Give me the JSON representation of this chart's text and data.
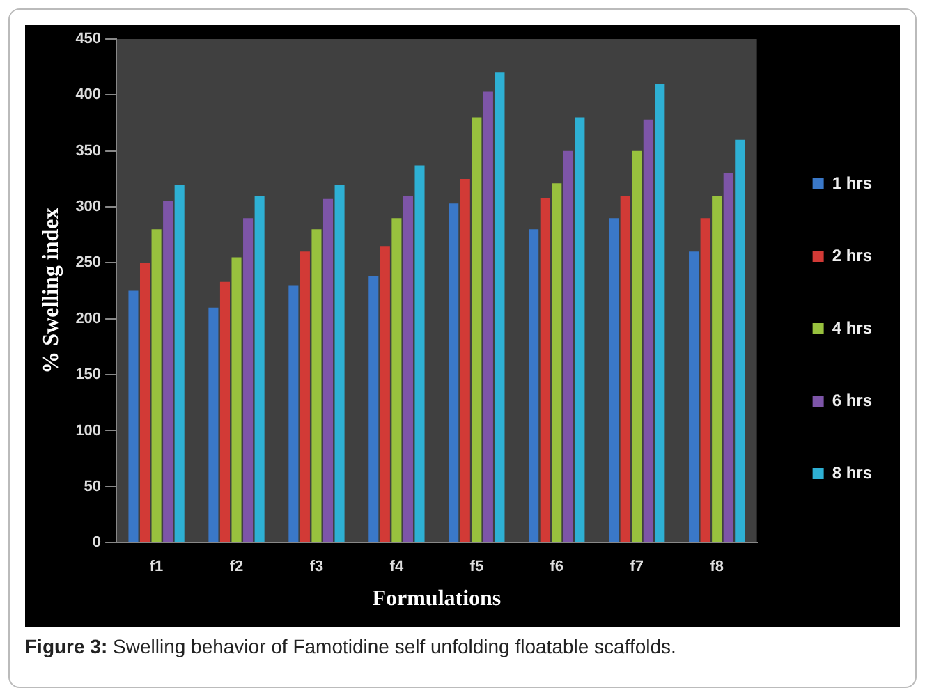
{
  "chart_data": {
    "type": "bar",
    "xlabel": "Formulations",
    "ylabel": "% Swelling index",
    "categories": [
      "f1",
      "f2",
      "f3",
      "f4",
      "f5",
      "f6",
      "f7",
      "f8"
    ],
    "series": [
      {
        "name": "1 hrs",
        "color": "#3a78c8",
        "values": [
          225,
          210,
          230,
          238,
          303,
          280,
          290,
          260
        ]
      },
      {
        "name": "2 hrs",
        "color": "#d23a36",
        "values": [
          250,
          233,
          260,
          265,
          325,
          308,
          310,
          290
        ]
      },
      {
        "name": "4 hrs",
        "color": "#98c13e",
        "values": [
          280,
          255,
          280,
          290,
          380,
          321,
          350,
          310
        ]
      },
      {
        "name": "6 hrs",
        "color": "#7d55a8",
        "values": [
          305,
          290,
          307,
          310,
          403,
          350,
          378,
          330
        ]
      },
      {
        "name": "8 hrs",
        "color": "#2eb0d4",
        "values": [
          320,
          310,
          320,
          337,
          420,
          380,
          410,
          360
        ]
      }
    ],
    "ylim": [
      0,
      450
    ],
    "yticks": [
      0,
      50,
      100,
      150,
      200,
      250,
      300,
      350,
      400,
      450
    ],
    "grid": false,
    "legend": "right",
    "annotations": [
      "Figure 3: Swelling behavior of Famotidine self unfolding floatable scaffolds."
    ]
  }
}
